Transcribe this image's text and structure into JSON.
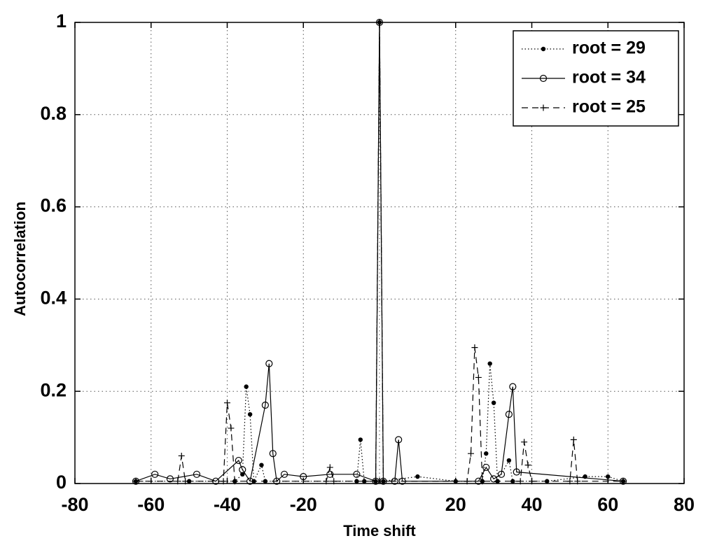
{
  "chart_data": {
    "type": "line",
    "xlabel": "Time shift",
    "ylabel": "Autocorrelation",
    "xlim": [
      -80,
      80
    ],
    "xticks": [
      -80,
      -60,
      -40,
      -20,
      0,
      20,
      40,
      60,
      80
    ],
    "ylim": [
      0,
      1
    ],
    "yticks": [
      0,
      0.2,
      0.4,
      0.6,
      0.8,
      1
    ],
    "grid": true,
    "legend": "upper right",
    "series": [
      {
        "name": "root = 29",
        "color": "#000000",
        "linestyle": "dotted",
        "marker": "dot",
        "x": [
          -64,
          -50,
          -38,
          -36,
          -35,
          -34,
          -33,
          -31,
          -30,
          -6,
          -5,
          -4,
          -1,
          0,
          1,
          10,
          20,
          27,
          28,
          29,
          30,
          31,
          34,
          35,
          44,
          54,
          60,
          64
        ],
        "values": [
          0.005,
          0.005,
          0.005,
          0.02,
          0.21,
          0.15,
          0.005,
          0.04,
          0.005,
          0.005,
          0.095,
          0.005,
          0.005,
          1,
          0.005,
          0.015,
          0.005,
          0.005,
          0.065,
          0.26,
          0.175,
          0.005,
          0.05,
          0.005,
          0.005,
          0.015,
          0.015,
          0.005
        ]
      },
      {
        "name": "root = 34",
        "color": "#000000",
        "linestyle": "solid",
        "marker": "circle",
        "x": [
          -64,
          -59,
          -55,
          -48,
          -43,
          -37,
          -36,
          -34,
          -30,
          -29,
          -28,
          -27,
          -25,
          -20,
          -13,
          -6,
          -1,
          0,
          1,
          4,
          5,
          6,
          26,
          28,
          30,
          32,
          34,
          35,
          36,
          64
        ],
        "values": [
          0.005,
          0.02,
          0.01,
          0.02,
          0.005,
          0.05,
          0.03,
          0.005,
          0.17,
          0.26,
          0.065,
          0.005,
          0.02,
          0.015,
          0.02,
          0.02,
          0.005,
          1,
          0.005,
          0.005,
          0.095,
          0.005,
          0.005,
          0.035,
          0.01,
          0.02,
          0.15,
          0.21,
          0.025,
          0.005
        ]
      },
      {
        "name": "root = 25",
        "color": "#000000",
        "linestyle": "dashed",
        "marker": "plus",
        "x": [
          -64,
          -53,
          -52,
          -51,
          -41,
          -40,
          -39,
          -38,
          -14,
          -13,
          -12,
          -1,
          0,
          1,
          23,
          24,
          25,
          26,
          27,
          37,
          38,
          39,
          40,
          50,
          51,
          52,
          64
        ],
        "values": [
          0.005,
          0.005,
          0.06,
          0.005,
          0.005,
          0.175,
          0.12,
          0.005,
          0.005,
          0.035,
          0.005,
          0.005,
          1,
          0.005,
          0.005,
          0.065,
          0.295,
          0.23,
          0.005,
          0.005,
          0.09,
          0.04,
          0.005,
          0.005,
          0.095,
          0.005,
          0.005
        ]
      }
    ]
  }
}
